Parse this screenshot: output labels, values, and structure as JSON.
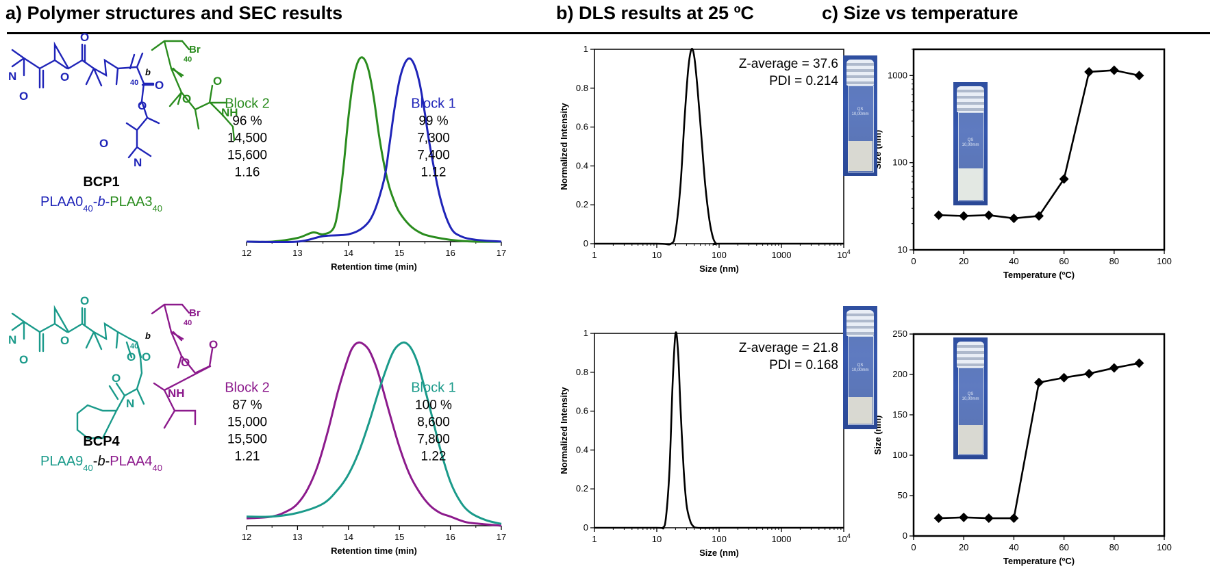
{
  "titles": {
    "a": "a) Polymer structures and SEC results",
    "b": "b) DLS results at 25 ºC",
    "c": "c) Size vs temperature"
  },
  "colors": {
    "blue": "#1f24b8",
    "green": "#2a8c1e",
    "teal": "#1a9a8a",
    "purple": "#8c1a8c",
    "black": "#000000"
  },
  "structures": [
    {
      "name": "BCP1",
      "label_parts": [
        "PLAA0",
        "40",
        "-",
        "b",
        "-",
        "PLAA3",
        "40"
      ],
      "label_colors": [
        "blue",
        "blue",
        "blue",
        "blue",
        "blue",
        "green",
        "green"
      ],
      "atoms": [
        "N",
        "O",
        "O",
        "O",
        "O",
        "O",
        "N",
        "O",
        "O",
        "O",
        "NH",
        "Br"
      ],
      "subscripts": [
        "40",
        "40"
      ],
      "block_letter": "b"
    },
    {
      "name": "BCP4",
      "label_parts": [
        "PLAA9",
        "40",
        "-",
        "b",
        "-",
        "PLAA4",
        "40"
      ],
      "label_colors": [
        "teal",
        "teal",
        "black",
        "black",
        "black",
        "purple",
        "purple"
      ],
      "atoms": [
        "N",
        "O",
        "O",
        "O",
        "O",
        "O",
        "N",
        "O",
        "O",
        "O",
        "NH",
        "Br"
      ],
      "subscripts": [
        "40",
        "40"
      ],
      "block_letter": "b"
    }
  ],
  "chart_data": [
    {
      "id": "sec1",
      "type": "line",
      "xlabel": "Retention time (min)",
      "ylabel": "",
      "xlim": [
        12,
        17
      ],
      "xticks": [
        "12",
        "13",
        "14",
        "15",
        "16",
        "17"
      ],
      "series": [
        {
          "name": "Block 2",
          "color": "green",
          "x": [
            12.0,
            12.5,
            13.0,
            13.3,
            13.5,
            13.7,
            13.8,
            13.9,
            14.0,
            14.1,
            14.2,
            14.3,
            14.4,
            14.5,
            14.6,
            14.7,
            14.8,
            14.9,
            15.0,
            15.2,
            15.4,
            15.6,
            16.0,
            16.5,
            17.0
          ],
          "y": [
            0.0,
            0.0,
            0.02,
            0.05,
            0.04,
            0.07,
            0.18,
            0.4,
            0.68,
            0.89,
            0.99,
            1.0,
            0.93,
            0.78,
            0.58,
            0.42,
            0.3,
            0.22,
            0.16,
            0.09,
            0.05,
            0.03,
            0.01,
            0.0,
            0.0
          ]
        },
        {
          "name": "Block 1",
          "color": "blue",
          "x": [
            12.0,
            13.0,
            13.5,
            14.0,
            14.3,
            14.5,
            14.7,
            14.8,
            14.9,
            15.0,
            15.1,
            15.2,
            15.3,
            15.4,
            15.5,
            15.6,
            15.8,
            16.0,
            16.2,
            16.5,
            17.0
          ],
          "y": [
            0.0,
            0.0,
            0.03,
            0.04,
            0.08,
            0.16,
            0.34,
            0.52,
            0.72,
            0.88,
            0.97,
            1.0,
            0.96,
            0.86,
            0.7,
            0.52,
            0.24,
            0.08,
            0.03,
            0.01,
            0.0
          ]
        }
      ],
      "annotations": [
        {
          "title": "Block 2",
          "values": [
            "96 %",
            "14,500",
            "15,600",
            "1.16"
          ],
          "color": "green",
          "side": "left"
        },
        {
          "title": "Block 1",
          "values": [
            "99 %",
            "7,300",
            "7,400",
            "1.12"
          ],
          "color": "blue",
          "side": "right"
        }
      ]
    },
    {
      "id": "sec2",
      "type": "line",
      "xlabel": "Retention time (min)",
      "ylabel": "",
      "xlim": [
        12,
        17
      ],
      "xticks": [
        "12",
        "13",
        "14",
        "15",
        "16",
        "17"
      ],
      "series": [
        {
          "name": "Block 2",
          "color": "purple",
          "x": [
            12.0,
            12.5,
            12.8,
            13.0,
            13.2,
            13.4,
            13.6,
            13.8,
            14.0,
            14.1,
            14.2,
            14.3,
            14.4,
            14.5,
            14.6,
            14.8,
            15.0,
            15.2,
            15.4,
            15.6,
            15.8,
            16.0,
            16.3,
            16.6,
            17.0
          ],
          "y": [
            0.04,
            0.05,
            0.08,
            0.12,
            0.2,
            0.33,
            0.52,
            0.74,
            0.92,
            0.98,
            1.0,
            0.99,
            0.96,
            0.9,
            0.82,
            0.62,
            0.43,
            0.28,
            0.18,
            0.11,
            0.07,
            0.05,
            0.02,
            0.01,
            0.0
          ]
        },
        {
          "name": "Block 1",
          "color": "teal",
          "x": [
            12.0,
            12.5,
            13.0,
            13.5,
            13.8,
            14.0,
            14.2,
            14.4,
            14.6,
            14.8,
            14.9,
            15.0,
            15.1,
            15.2,
            15.3,
            15.4,
            15.6,
            15.8,
            16.0,
            16.2,
            16.4,
            16.7,
            17.0
          ],
          "y": [
            0.05,
            0.05,
            0.07,
            0.12,
            0.2,
            0.28,
            0.4,
            0.56,
            0.74,
            0.9,
            0.96,
            0.99,
            1.0,
            0.98,
            0.93,
            0.85,
            0.64,
            0.42,
            0.24,
            0.13,
            0.07,
            0.03,
            0.01
          ]
        }
      ],
      "annotations": [
        {
          "title": "Block 2",
          "values": [
            "87 %",
            "15,000",
            "15,500",
            "1.21"
          ],
          "color": "purple",
          "side": "left"
        },
        {
          "title": "Block 1",
          "values": [
            "100 %",
            "8,600",
            "7,800",
            "1.22"
          ],
          "color": "teal",
          "side": "right"
        }
      ]
    },
    {
      "id": "dls1",
      "type": "line",
      "xscale": "log",
      "xlabel": "Size (nm)",
      "ylabel": "Normalized Intensity",
      "xlim": [
        1,
        10000
      ],
      "ylim": [
        0,
        1
      ],
      "xticks": [
        "1",
        "10",
        "100",
        "1000",
        "10"
      ],
      "xtick_sup": "4",
      "yticks": [
        "0",
        "0.2",
        "0.4",
        "0.6",
        "0.8",
        "1"
      ],
      "series": [
        {
          "name": "",
          "color": "black",
          "x": [
            1,
            10,
            17,
            20,
            24,
            28,
            32,
            36,
            40,
            45,
            52,
            60,
            70,
            80,
            90,
            100,
            1000,
            10000
          ],
          "y": [
            0,
            0,
            0,
            0.06,
            0.3,
            0.65,
            0.9,
            1.0,
            0.96,
            0.8,
            0.55,
            0.3,
            0.12,
            0.03,
            0,
            0,
            0,
            0
          ]
        }
      ],
      "annotation": [
        "Z-average = 37.6",
        "PDI = 0.214"
      ]
    },
    {
      "id": "dls2",
      "type": "line",
      "xscale": "log",
      "xlabel": "Size (nm)",
      "ylabel": "Normalized Intensity",
      "xlim": [
        1,
        10000
      ],
      "ylim": [
        0,
        1
      ],
      "xticks": [
        "1",
        "10",
        "100",
        "1000",
        "10"
      ],
      "xtick_sup": "4",
      "yticks": [
        "0",
        "0.2",
        "0.4",
        "0.6",
        "0.8",
        "1"
      ],
      "series": [
        {
          "name": "",
          "color": "black",
          "x": [
            1,
            10,
            12.5,
            14,
            16,
            18,
            20,
            22,
            24,
            27,
            30,
            34,
            38,
            45,
            100,
            1000,
            10000
          ],
          "y": [
            0,
            0,
            0,
            0.05,
            0.3,
            0.75,
            1.0,
            0.9,
            0.62,
            0.3,
            0.12,
            0.04,
            0.01,
            0,
            0,
            0,
            0
          ]
        }
      ],
      "annotation": [
        "Z-average = 21.8",
        "PDI = 0.168"
      ]
    },
    {
      "id": "temp1",
      "type": "line",
      "yscale": "log",
      "xlabel": "Temperature (ºC)",
      "ylabel": "Size (nm)",
      "xlim": [
        0,
        100
      ],
      "ylim": [
        10,
        2000
      ],
      "xticks": [
        "0",
        "20",
        "40",
        "60",
        "80",
        "100"
      ],
      "yticks": [
        "10",
        "100",
        "1000"
      ],
      "series": [
        {
          "name": "",
          "color": "black",
          "x": [
            10,
            20,
            30,
            40,
            50,
            60,
            70,
            80,
            90
          ],
          "y": [
            25,
            24.5,
            25,
            23,
            24.5,
            65,
            1100,
            1150,
            1000
          ]
        }
      ]
    },
    {
      "id": "temp2",
      "type": "line",
      "xlabel": "Temperature (ºC)",
      "ylabel": "Size (nm)",
      "xlim": [
        0,
        100
      ],
      "ylim": [
        0,
        250
      ],
      "xticks": [
        "0",
        "20",
        "40",
        "60",
        "80",
        "100"
      ],
      "yticks": [
        "0",
        "50",
        "100",
        "150",
        "200",
        "250"
      ],
      "series": [
        {
          "name": "",
          "color": "black",
          "x": [
            10,
            20,
            30,
            40,
            50,
            60,
            70,
            80,
            90
          ],
          "y": [
            22,
            23,
            22,
            22,
            190,
            196,
            201,
            208,
            214
          ]
        }
      ]
    }
  ],
  "photos": [
    {
      "label_lines": [
        "QS",
        "10,00mm"
      ]
    },
    {
      "label_lines": [
        "QS",
        "10,00mm"
      ]
    },
    {
      "label_lines": [
        "QS",
        "10,00mm"
      ]
    },
    {
      "label_lines": [
        "QS",
        "10,00mm"
      ]
    }
  ]
}
